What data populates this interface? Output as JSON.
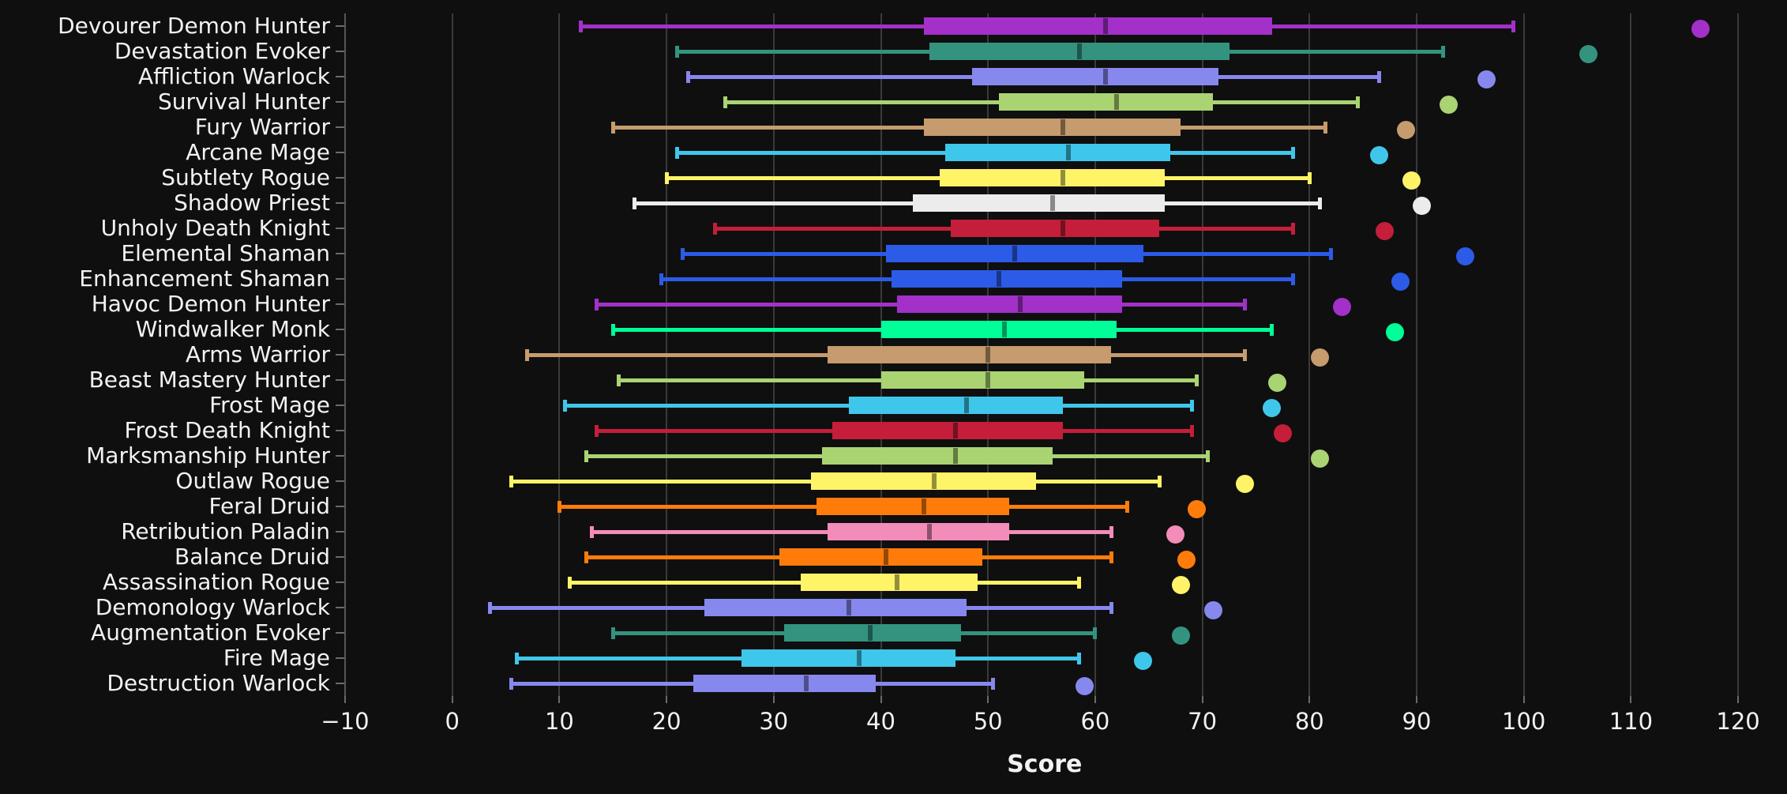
{
  "chart_data": {
    "type": "boxplot",
    "orientation": "horizontal",
    "title": "",
    "xlabel": "Score",
    "xlim": [
      -10.45,
      121
    ],
    "xticks": [
      -10,
      0,
      10,
      20,
      30,
      40,
      50,
      60,
      70,
      80,
      90,
      100,
      110,
      120
    ],
    "grid": "vertical",
    "legend": "none",
    "background_color": "#0f0f0f",
    "gridline_color": "#3a3a3a",
    "spine_color": "#565656",
    "text_color": "#f2f2f2",
    "rows": [
      {
        "label": "Devourer Demon Hunter",
        "color": "#a330c9",
        "whisker_low": 12,
        "q1": 44,
        "median": 61,
        "q3": 76.5,
        "whisker_high": 99,
        "max_point": 116.5
      },
      {
        "label": "Devastation Evoker",
        "color": "#33937f",
        "whisker_low": 21,
        "q1": 44.5,
        "median": 58.5,
        "q3": 72.5,
        "whisker_high": 92.5,
        "max_point": 106
      },
      {
        "label": "Affliction Warlock",
        "color": "#8788ee",
        "whisker_low": 22,
        "q1": 48.5,
        "median": 61,
        "q3": 71.5,
        "whisker_high": 86.5,
        "max_point": 96.5
      },
      {
        "label": "Survival Hunter",
        "color": "#aad372",
        "whisker_low": 25.5,
        "q1": 51,
        "median": 62,
        "q3": 71,
        "whisker_high": 84.5,
        "max_point": 93
      },
      {
        "label": "Fury Warrior",
        "color": "#c69b6d",
        "whisker_low": 15,
        "q1": 44,
        "median": 57,
        "q3": 68,
        "whisker_high": 81.5,
        "max_point": 89
      },
      {
        "label": "Arcane Mage",
        "color": "#3fc7eb",
        "whisker_low": 21,
        "q1": 46,
        "median": 57.5,
        "q3": 67,
        "whisker_high": 78.5,
        "max_point": 86.5
      },
      {
        "label": "Subtlety Rogue",
        "color": "#fff468",
        "whisker_low": 20,
        "q1": 45.5,
        "median": 57,
        "q3": 66.5,
        "whisker_high": 80,
        "max_point": 89.5
      },
      {
        "label": "Shadow Priest",
        "color": "#ececec",
        "whisker_low": 17,
        "q1": 43,
        "median": 56,
        "q3": 66.5,
        "whisker_high": 81,
        "max_point": 90.5
      },
      {
        "label": "Unholy Death Knight",
        "color": "#c41e3a",
        "whisker_low": 24.5,
        "q1": 46.5,
        "median": 57,
        "q3": 66,
        "whisker_high": 78.5,
        "max_point": 87
      },
      {
        "label": "Elemental Shaman",
        "color": "#2c5be8",
        "whisker_low": 21.5,
        "q1": 40.5,
        "median": 52.5,
        "q3": 64.5,
        "whisker_high": 82,
        "max_point": 94.5
      },
      {
        "label": "Enhancement Shaman",
        "color": "#2c5be8",
        "whisker_low": 19.5,
        "q1": 41,
        "median": 51,
        "q3": 62.5,
        "whisker_high": 78.5,
        "max_point": 88.5
      },
      {
        "label": "Havoc Demon Hunter",
        "color": "#a330c9",
        "whisker_low": 13.5,
        "q1": 41.5,
        "median": 53,
        "q3": 62.5,
        "whisker_high": 74,
        "max_point": 83
      },
      {
        "label": "Windwalker Monk",
        "color": "#00ff98",
        "whisker_low": 15,
        "q1": 40,
        "median": 51.5,
        "q3": 62,
        "whisker_high": 76.5,
        "max_point": 88
      },
      {
        "label": "Arms Warrior",
        "color": "#c69b6d",
        "whisker_low": 7,
        "q1": 35,
        "median": 50,
        "q3": 61.5,
        "whisker_high": 74,
        "max_point": 81
      },
      {
        "label": "Beast Mastery Hunter",
        "color": "#aad372",
        "whisker_low": 15.5,
        "q1": 40,
        "median": 50,
        "q3": 59,
        "whisker_high": 69.5,
        "max_point": 77
      },
      {
        "label": "Frost Mage",
        "color": "#3fc7eb",
        "whisker_low": 10.5,
        "q1": 37,
        "median": 48,
        "q3": 57,
        "whisker_high": 69,
        "max_point": 76.5
      },
      {
        "label": "Frost Death Knight",
        "color": "#c41e3a",
        "whisker_low": 13.5,
        "q1": 35.5,
        "median": 47,
        "q3": 57,
        "whisker_high": 69,
        "max_point": 77.5
      },
      {
        "label": "Marksmanship Hunter",
        "color": "#aad372",
        "whisker_low": 12.5,
        "q1": 34.5,
        "median": 47,
        "q3": 56,
        "whisker_high": 70.5,
        "max_point": 81
      },
      {
        "label": "Outlaw Rogue",
        "color": "#fff468",
        "whisker_low": 5.5,
        "q1": 33.5,
        "median": 45,
        "q3": 54.5,
        "whisker_high": 66,
        "max_point": 74
      },
      {
        "label": "Feral Druid",
        "color": "#ff7c0a",
        "whisker_low": 10,
        "q1": 34,
        "median": 44,
        "q3": 52,
        "whisker_high": 63,
        "max_point": 69.5
      },
      {
        "label": "Retribution Paladin",
        "color": "#f48cba",
        "whisker_low": 13,
        "q1": 35,
        "median": 44.5,
        "q3": 52,
        "whisker_high": 61.5,
        "max_point": 67.5
      },
      {
        "label": "Balance Druid",
        "color": "#ff7c0a",
        "whisker_low": 12.5,
        "q1": 30.5,
        "median": 40.5,
        "q3": 49.5,
        "whisker_high": 61.5,
        "max_point": 68.5
      },
      {
        "label": "Assassination Rogue",
        "color": "#fff468",
        "whisker_low": 11,
        "q1": 32.5,
        "median": 41.5,
        "q3": 49,
        "whisker_high": 58.5,
        "max_point": 68
      },
      {
        "label": "Demonology Warlock",
        "color": "#8788ee",
        "whisker_low": 3.5,
        "q1": 23.5,
        "median": 37,
        "q3": 48,
        "whisker_high": 61.5,
        "max_point": 71
      },
      {
        "label": "Augmentation Evoker",
        "color": "#33937f",
        "whisker_low": 15,
        "q1": 31,
        "median": 39,
        "q3": 47.5,
        "whisker_high": 60,
        "max_point": 68
      },
      {
        "label": "Fire Mage",
        "color": "#3fc7eb",
        "whisker_low": 6,
        "q1": 27,
        "median": 38,
        "q3": 47,
        "whisker_high": 58.5,
        "max_point": 64.5
      },
      {
        "label": "Destruction Warlock",
        "color": "#8788ee",
        "whisker_low": 5.5,
        "q1": 22.5,
        "median": 33,
        "q3": 39.5,
        "whisker_high": 50.5,
        "max_point": 59
      }
    ]
  }
}
